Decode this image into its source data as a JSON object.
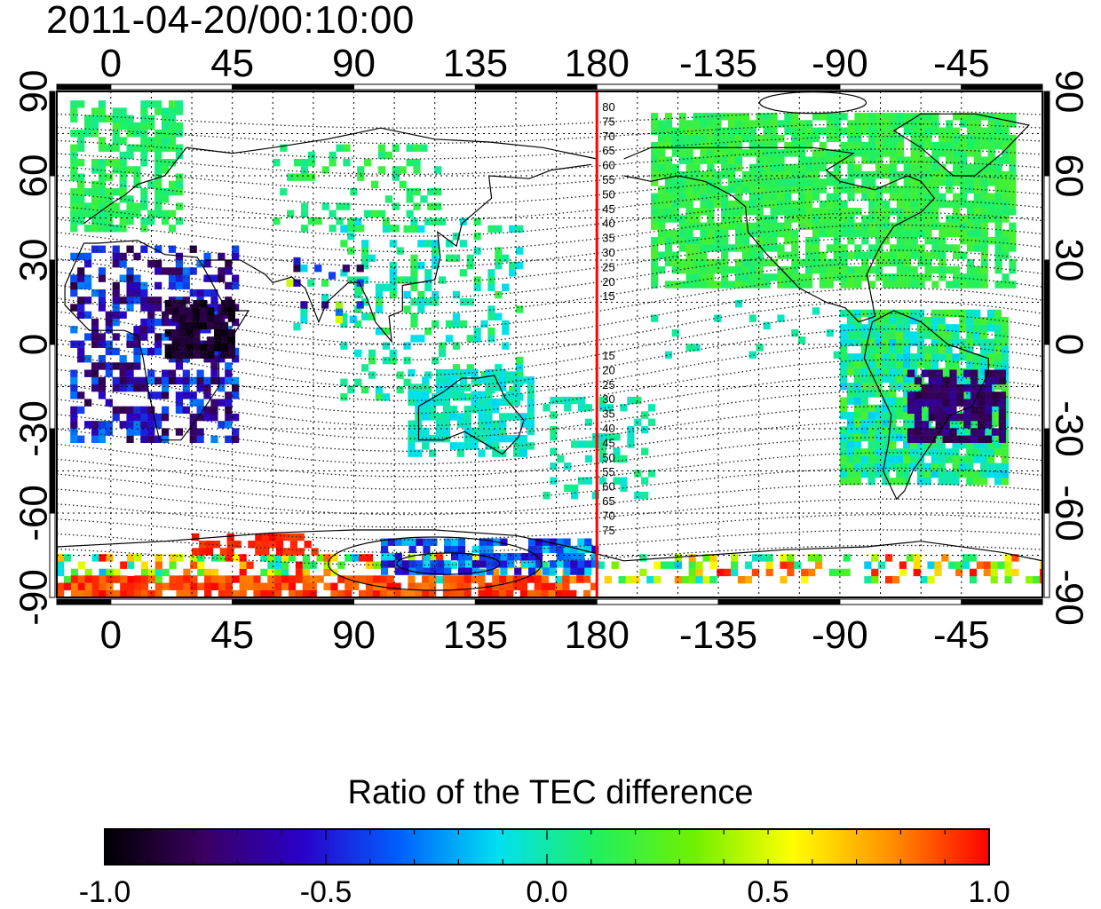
{
  "title": "2011-04-20/00:10:00",
  "map": {
    "x_ticks_top": [
      "0",
      "45",
      "90",
      "135",
      "180",
      "-135",
      "-90",
      "-45"
    ],
    "x_ticks_bottom": [
      "0",
      "45",
      "90",
      "135",
      "180",
      "-135",
      "-90",
      "-45"
    ],
    "y_ticks_left": [
      "90",
      "60",
      "30",
      "0",
      "-30",
      "-60",
      "-90"
    ],
    "y_ticks_right": [
      "90",
      "60",
      "30",
      "0",
      "-30",
      "-60",
      "-90"
    ],
    "x_tick_values_deg": [
      0,
      45,
      90,
      135,
      180,
      225,
      270,
      315
    ],
    "lon_range_deg": [
      -20,
      345
    ],
    "y_tick_values_deg": [
      90,
      60,
      30,
      0,
      -30,
      -60,
      -90
    ],
    "meridian_line_lon": 180,
    "meridian_line_color": "#ff0000",
    "contour_labels_north": [
      "80",
      "75",
      "70",
      "65",
      "60",
      "55",
      "50",
      "45",
      "40",
      "35",
      "30",
      "25",
      "20",
      "15"
    ],
    "contour_labels_south": [
      "15",
      "20",
      "25",
      "30",
      "35",
      "40",
      "45",
      "50",
      "55",
      "60",
      "65",
      "70",
      "75"
    ]
  },
  "colorbar": {
    "title": "Ratio of the TEC difference",
    "ticks": [
      "-1.0",
      "-0.5",
      "0.0",
      "0.5",
      "1.0"
    ],
    "tick_values": [
      -1.0,
      -0.5,
      0.0,
      0.5,
      1.0
    ],
    "range": [
      -1.0,
      1.0
    ],
    "colormap": [
      "#000000",
      "#3a0060",
      "#2a00c8",
      "#0060ff",
      "#00e0f0",
      "#20f060",
      "#70f000",
      "#ffff00",
      "#ff9000",
      "#ff0000"
    ]
  }
}
